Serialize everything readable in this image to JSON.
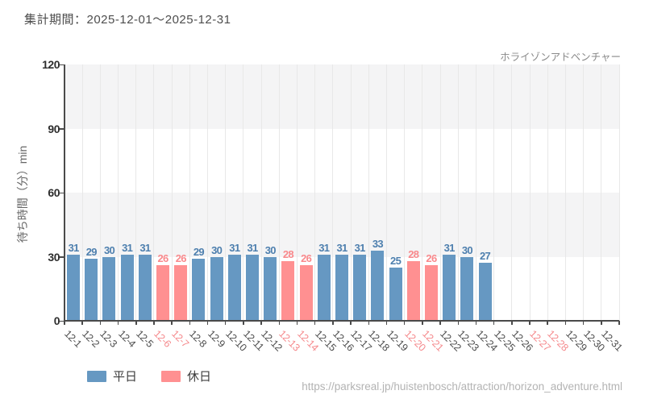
{
  "page": {
    "title": "集計期間：2025-12-01～2025-12-31",
    "source_url": "https://parksreal.jp/huistenbosch/attraction/horizon_adventure.html"
  },
  "chart_data": {
    "type": "bar",
    "title": "ホライゾンアドベンチャー",
    "xlabel": "",
    "ylabel": "待ち時間（分）min",
    "ylim": [
      0,
      120
    ],
    "yticks": [
      0,
      30,
      60,
      90,
      120
    ],
    "grid": true,
    "legend_position": "bottom",
    "categories": [
      "12-1",
      "12-2",
      "12-3",
      "12-4",
      "12-5",
      "12-6",
      "12-7",
      "12-8",
      "12-9",
      "12-10",
      "12-11",
      "12-12",
      "12-13",
      "12-14",
      "12-15",
      "12-16",
      "12-17",
      "12-18",
      "12-19",
      "12-20",
      "12-21",
      "12-22",
      "12-23",
      "12-24",
      "12-25",
      "12-26",
      "12-27",
      "12-28",
      "12-29",
      "12-30",
      "12-31"
    ],
    "values": [
      31,
      29,
      30,
      31,
      31,
      26,
      26,
      29,
      30,
      31,
      31,
      30,
      28,
      26,
      31,
      31,
      31,
      33,
      25,
      28,
      26,
      31,
      30,
      27,
      null,
      null,
      null,
      null,
      null,
      null,
      null
    ],
    "day_types": [
      "weekday",
      "weekday",
      "weekday",
      "weekday",
      "weekday",
      "holiday",
      "holiday",
      "weekday",
      "weekday",
      "weekday",
      "weekday",
      "weekday",
      "holiday",
      "holiday",
      "weekday",
      "weekday",
      "weekday",
      "weekday",
      "weekday",
      "holiday",
      "holiday",
      "weekday",
      "weekday",
      "weekday",
      "weekday",
      "weekday",
      "holiday",
      "holiday",
      "weekday",
      "weekday",
      "weekday"
    ],
    "legend": [
      {
        "label": "平日",
        "type": "weekday",
        "color": "#6698c2"
      },
      {
        "label": "休日",
        "type": "holiday",
        "color": "#ff9091"
      }
    ],
    "colors": {
      "weekday_bar": "#6698c2",
      "holiday_bar": "#ff9091",
      "weekday_value_label": "#4d7fae",
      "holiday_value_label": "#f9898c",
      "weekday_tick_label": "#4d4d4d",
      "holiday_tick_label": "#f5898c",
      "band_gray": "#f4f4f5",
      "band_white": "#ffffff",
      "gridline": "#e8e8e8",
      "axis": "#4a4a4a",
      "ytick_label": "#2e2e2e"
    }
  }
}
